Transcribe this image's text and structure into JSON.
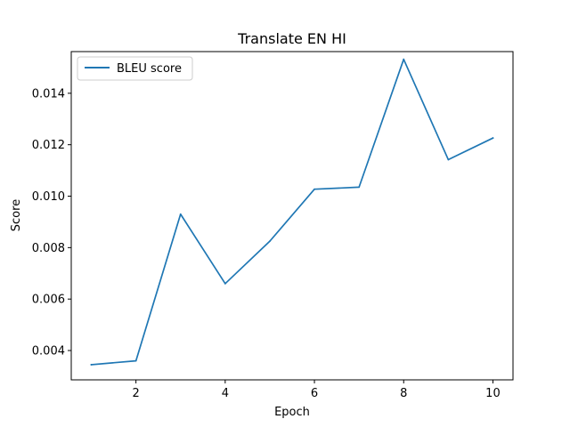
{
  "chart_data": {
    "type": "line",
    "title": "Translate EN HI",
    "xlabel": "Epoch",
    "ylabel": "Score",
    "x": [
      1,
      2,
      3,
      4,
      5,
      6,
      7,
      8,
      9,
      10
    ],
    "series": [
      {
        "name": "BLEU score",
        "color": "#1f77b4",
        "values": [
          0.00345,
          0.0036,
          0.0093,
          0.0066,
          0.00825,
          0.01027,
          0.01035,
          0.01532,
          0.01142,
          0.01226
        ]
      }
    ],
    "xlim": [
      0.55,
      10.45
    ],
    "ylim": [
      0.00286,
      0.01562
    ],
    "xticks": [
      2,
      4,
      6,
      8,
      10
    ],
    "yticks": [
      0.004,
      0.006,
      0.008,
      0.01,
      0.012,
      0.014
    ],
    "ytick_labels": [
      "0.004",
      "0.006",
      "0.008",
      "0.010",
      "0.012",
      "0.014"
    ],
    "xtick_labels": [
      "2",
      "4",
      "6",
      "8",
      "10"
    ],
    "grid": false,
    "legend_position": "top-left"
  }
}
